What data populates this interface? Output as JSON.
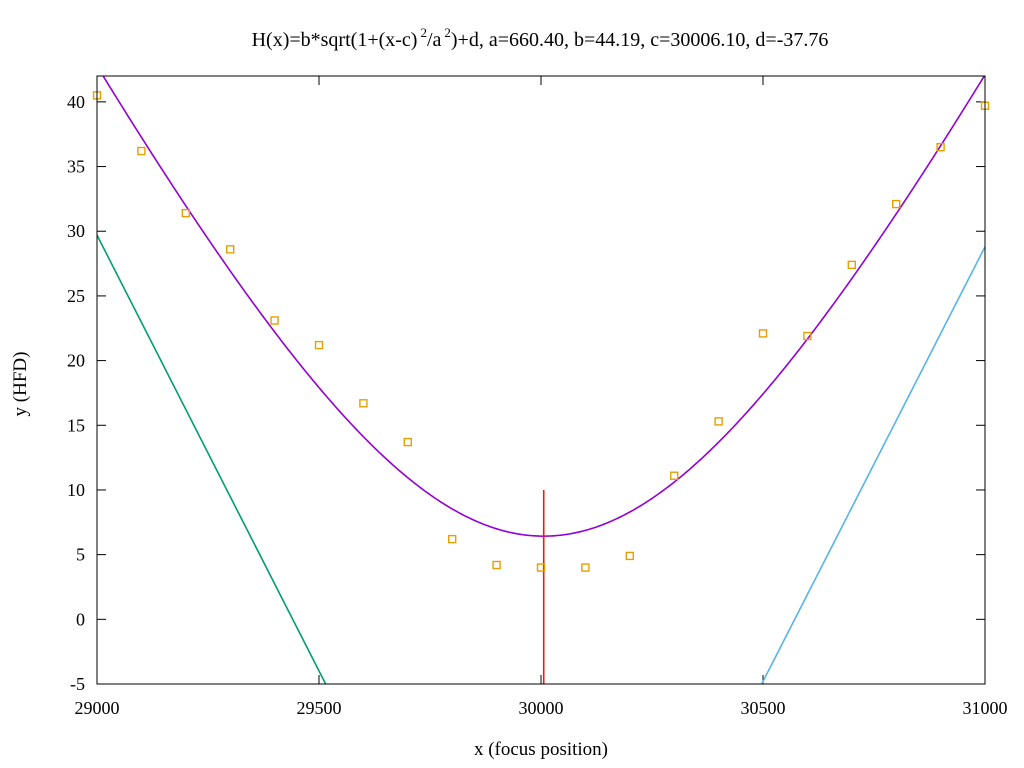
{
  "chart_data": {
    "type": "scatter",
    "title": {
      "part1": "H(x)=b*sqrt(1+(x-c)",
      "sup1": "2",
      "part2": "/a",
      "sup2": "2",
      "part3": ")+d, a=660.40, b=44.19, c=30006.10, d=-37.76"
    },
    "xlabel": "x (focus position)",
    "ylabel": "y (HFD)",
    "xlim": [
      29000,
      31000
    ],
    "ylim": [
      -5,
      42
    ],
    "grid": false,
    "xticks": [
      29000,
      29500,
      30000,
      30500,
      31000
    ],
    "yticks": [
      -5,
      0,
      5,
      10,
      15,
      20,
      25,
      30,
      35,
      40
    ],
    "hyperbola": {
      "a": 660.4,
      "b": 44.19,
      "c": 30006.1,
      "d": -37.76
    },
    "series": [
      {
        "type": "scatter",
        "color": "#e69f00",
        "marker": "open-square",
        "x": [
          29000,
          29100,
          29200,
          29300,
          29400,
          29500,
          29600,
          29700,
          29800,
          29900,
          30000,
          30100,
          30200,
          30300,
          30400,
          30500,
          30600,
          30700,
          30800,
          30900,
          31000
        ],
        "y": [
          40.5,
          36.2,
          31.4,
          28.6,
          23.1,
          21.2,
          16.7,
          13.7,
          6.2,
          4.2,
          4.0,
          4.0,
          4.9,
          11.1,
          15.3,
          22.1,
          21.9,
          27.4,
          32.1,
          36.5,
          39.7
        ]
      },
      {
        "type": "line",
        "color": "#9400d3",
        "function": "hyperbola",
        "x_range": [
          29000,
          31000
        ]
      },
      {
        "type": "line",
        "color": "#009e73",
        "x": [
          29000,
          29515
        ],
        "y": [
          29.7,
          -5.0
        ]
      },
      {
        "type": "line",
        "color": "#56b4e9",
        "x": [
          30497,
          31000
        ],
        "y": [
          -5.0,
          28.8
        ]
      },
      {
        "type": "line",
        "color": "#e51e10",
        "x": [
          30006.1,
          30006.1
        ],
        "y": [
          -5.0,
          10.0
        ]
      }
    ]
  }
}
